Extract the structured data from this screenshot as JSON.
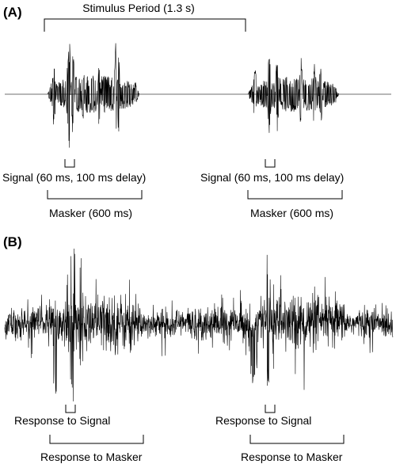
{
  "panel_a": {
    "label": "(A)",
    "stimulus_period": "Stimulus Period (1.3 s)",
    "signal_label": "Signal (60 ms, 100 ms delay)",
    "masker_label": "Masker (600 ms)"
  },
  "panel_b": {
    "label": "(B)",
    "response_signal_label": "Response to Signal",
    "response_masker_label": "Response to Masker"
  },
  "colors": {
    "waveform": "#000000",
    "baseline": "#8c8c8c",
    "background": "#ffffff"
  }
}
